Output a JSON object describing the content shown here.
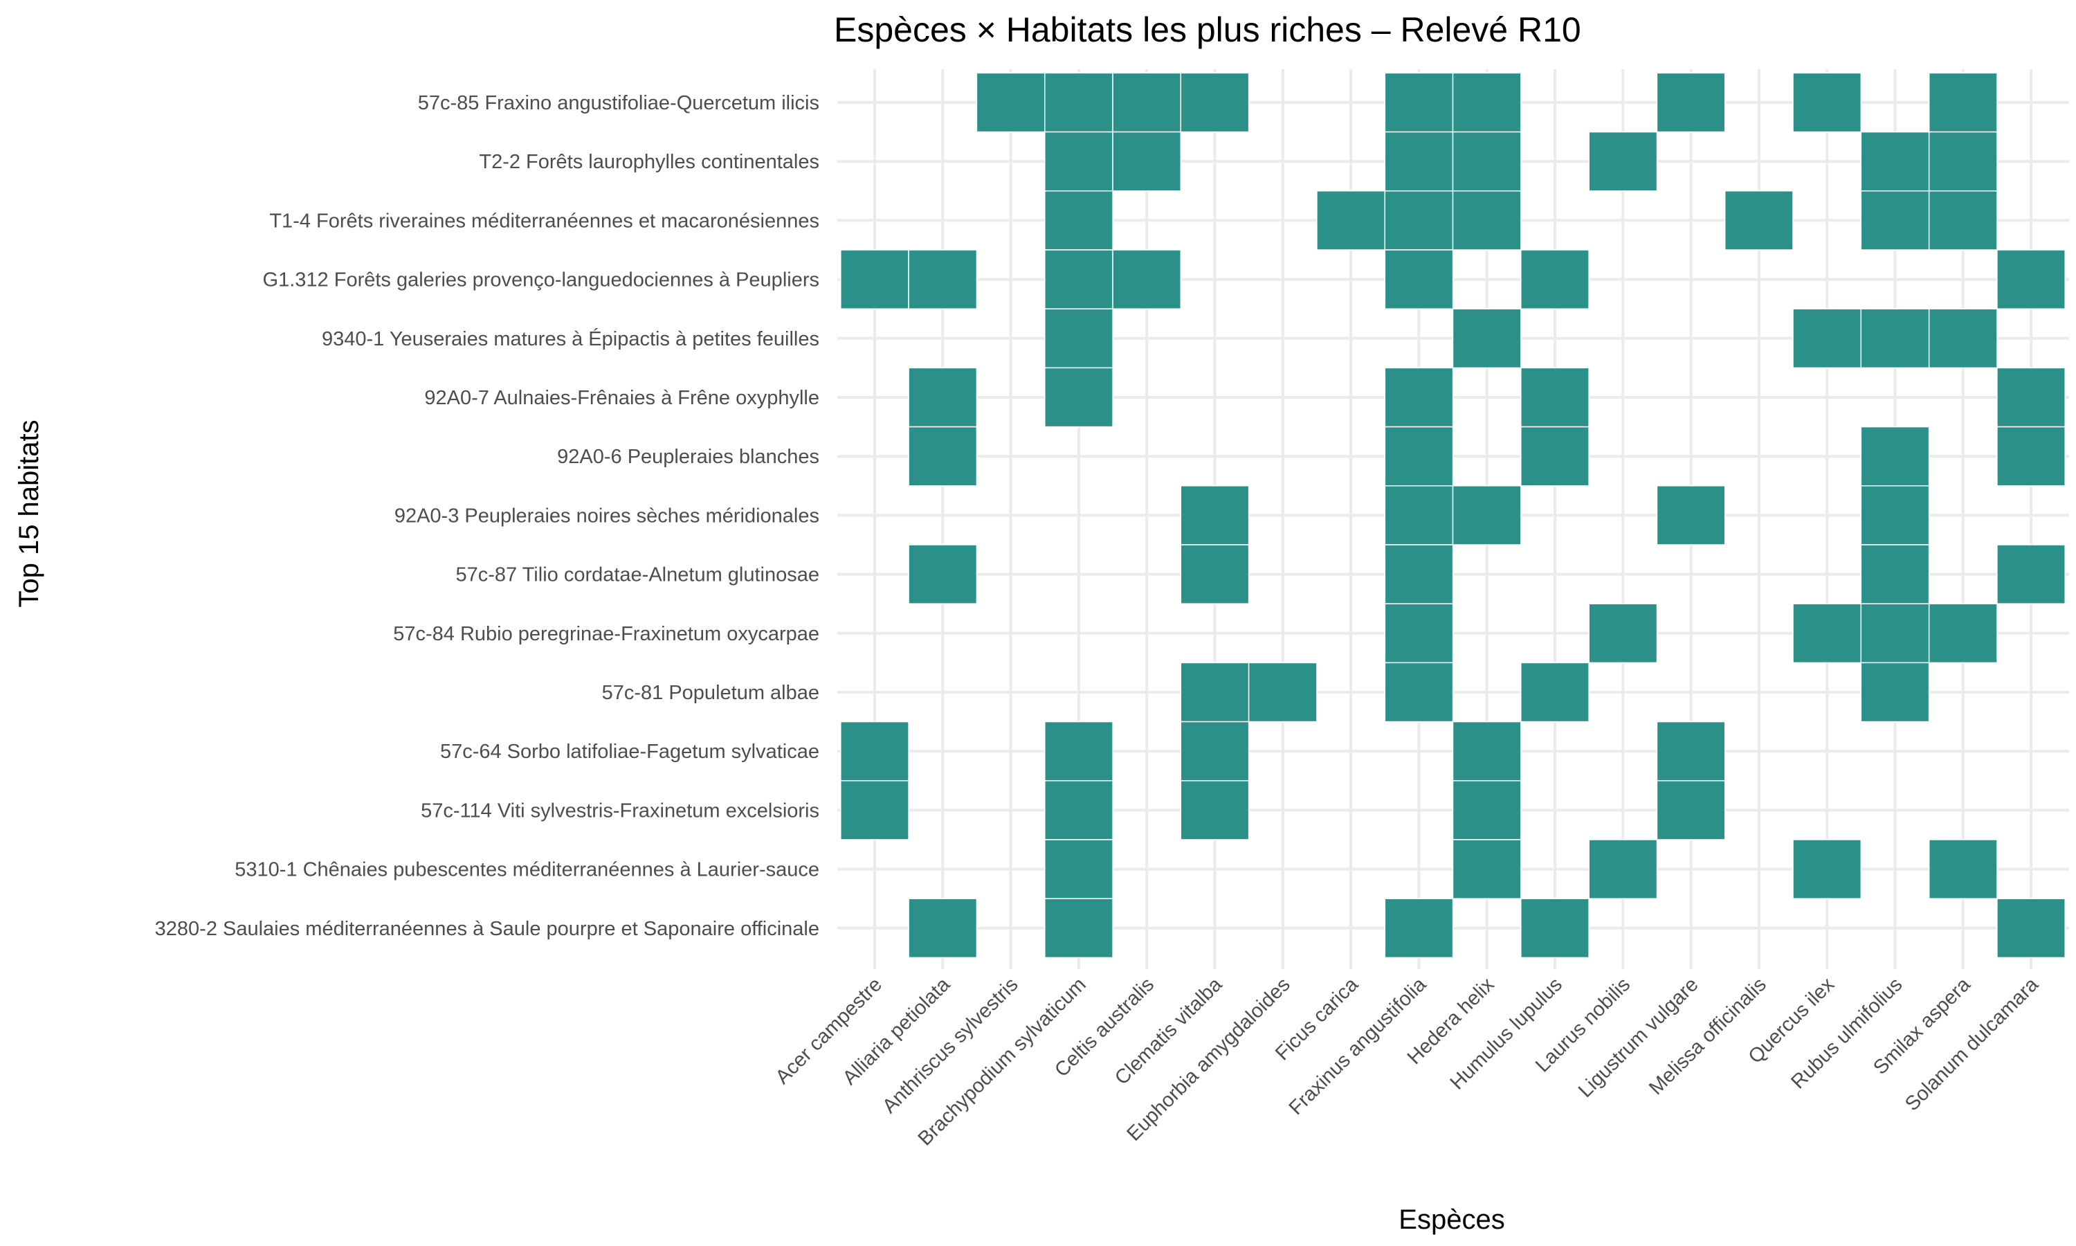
{
  "chart_data": {
    "type": "heatmap",
    "title": "Espèces × Habitats les plus riches – Relevé R10",
    "xlabel": "Espèces",
    "ylabel": "Top 15 habitats",
    "grid": true,
    "legend": "none",
    "fill_color": "#2a9088",
    "x_categories": [
      "Acer campestre",
      "Alliaria petiolata",
      "Anthriscus sylvestris",
      "Brachypodium sylvaticum",
      "Celtis australis",
      "Clematis vitalba",
      "Euphorbia amygdaloides",
      "Ficus carica",
      "Fraxinus angustifolia",
      "Hedera helix",
      "Humulus lupulus",
      "Laurus nobilis",
      "Ligustrum vulgare",
      "Melissa officinalis",
      "Quercus ilex",
      "Rubus ulmifolius",
      "Smilax aspera",
      "Solanum dulcamara"
    ],
    "y_categories": [
      "57c-85 Fraxino angustifoliae-Quercetum ilicis",
      "T2-2 Forêts laurophylles continentales",
      "T1-4 Forêts riveraines méditerranéennes et macaronésiennes",
      "G1.312 Forêts galeries provenço-languedociennes à Peupliers",
      "9340-1 Yeuseraies matures à Épipactis à petites feuilles",
      "92A0-7 Aulnaies-Frênaies à Frêne oxyphylle",
      "92A0-6 Peupleraies blanches",
      "92A0-3 Peupleraies noires sèches méridionales",
      "57c-87 Tilio cordatae-Alnetum glutinosae",
      "57c-84 Rubio peregrinae-Fraxinetum oxycarpae",
      "57c-81 Populetum albae",
      "57c-64 Sorbo latifoliae-Fagetum sylvaticae",
      "57c-114 Viti sylvestris-Fraxinetum excelsioris",
      "5310-1 Chênaies pubescentes méditerranéennes à Laurier-sauce",
      "3280-2 Saulaies méditerranéennes à Saule pourpre et Saponaire officinale"
    ],
    "presence": [
      [
        0,
        0,
        1,
        1,
        1,
        1,
        0,
        0,
        1,
        1,
        0,
        0,
        1,
        0,
        1,
        0,
        1,
        0
      ],
      [
        0,
        0,
        0,
        1,
        1,
        0,
        0,
        0,
        1,
        1,
        0,
        1,
        0,
        0,
        0,
        1,
        1,
        0
      ],
      [
        0,
        0,
        0,
        1,
        0,
        0,
        0,
        1,
        1,
        1,
        0,
        0,
        0,
        1,
        0,
        1,
        1,
        0
      ],
      [
        1,
        1,
        0,
        1,
        1,
        0,
        0,
        0,
        1,
        0,
        1,
        0,
        0,
        0,
        0,
        0,
        0,
        1
      ],
      [
        0,
        0,
        0,
        1,
        0,
        0,
        0,
        0,
        0,
        1,
        0,
        0,
        0,
        0,
        1,
        1,
        1,
        0
      ],
      [
        0,
        1,
        0,
        1,
        0,
        0,
        0,
        0,
        1,
        0,
        1,
        0,
        0,
        0,
        0,
        0,
        0,
        1
      ],
      [
        0,
        1,
        0,
        0,
        0,
        0,
        0,
        0,
        1,
        0,
        1,
        0,
        0,
        0,
        0,
        1,
        0,
        1
      ],
      [
        0,
        0,
        0,
        0,
        0,
        1,
        0,
        0,
        1,
        1,
        0,
        0,
        1,
        0,
        0,
        1,
        0,
        0
      ],
      [
        0,
        1,
        0,
        0,
        0,
        1,
        0,
        0,
        1,
        0,
        0,
        0,
        0,
        0,
        0,
        1,
        0,
        1
      ],
      [
        0,
        0,
        0,
        0,
        0,
        0,
        0,
        0,
        1,
        0,
        0,
        1,
        0,
        0,
        1,
        1,
        1,
        0
      ],
      [
        0,
        0,
        0,
        0,
        0,
        1,
        1,
        0,
        1,
        0,
        1,
        0,
        0,
        0,
        0,
        1,
        0,
        0
      ],
      [
        1,
        0,
        0,
        1,
        0,
        1,
        0,
        0,
        0,
        1,
        0,
        0,
        1,
        0,
        0,
        0,
        0,
        0
      ],
      [
        1,
        0,
        0,
        1,
        0,
        1,
        0,
        0,
        0,
        1,
        0,
        0,
        1,
        0,
        0,
        0,
        0,
        0
      ],
      [
        0,
        0,
        0,
        1,
        0,
        0,
        0,
        0,
        0,
        1,
        0,
        1,
        0,
        0,
        1,
        0,
        1,
        0
      ],
      [
        0,
        1,
        0,
        1,
        0,
        0,
        0,
        0,
        1,
        0,
        1,
        0,
        0,
        0,
        0,
        0,
        0,
        1
      ]
    ]
  }
}
